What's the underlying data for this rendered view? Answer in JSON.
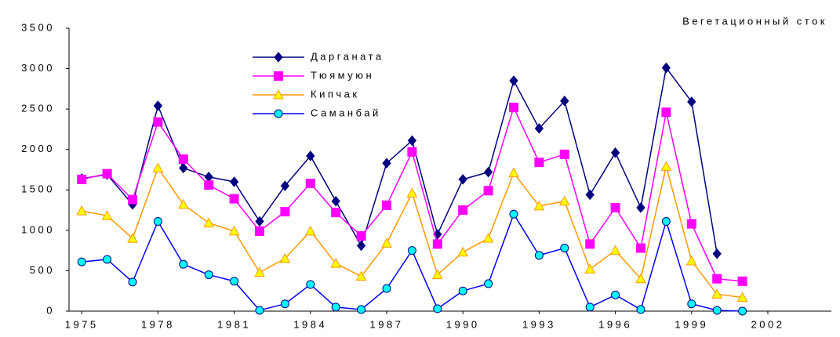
{
  "chart_data": {
    "type": "line",
    "title": "Вегетационный сток",
    "x": [
      1975,
      1976,
      1977,
      1978,
      1979,
      1980,
      1981,
      1982,
      1983,
      1984,
      1985,
      1986,
      1987,
      1988,
      1989,
      1990,
      1991,
      1992,
      1993,
      1994,
      1995,
      1996,
      1997,
      1998,
      1999,
      2000,
      2001
    ],
    "series": [
      {
        "name": "Дарганата",
        "color": "#000080",
        "marker": "diamond",
        "marker_fill": "#000080",
        "values": [
          1640,
          1690,
          1320,
          2540,
          1770,
          1660,
          1600,
          1110,
          1550,
          1920,
          1360,
          810,
          1830,
          2110,
          950,
          1630,
          1720,
          2850,
          2260,
          2600,
          1440,
          1960,
          1280,
          3010,
          2590,
          710,
          null
        ]
      },
      {
        "name": "Тюямуюн",
        "color": "#ff00ff",
        "marker": "square",
        "marker_fill": "#ff00ff",
        "values": [
          1630,
          1700,
          1380,
          2340,
          1880,
          1560,
          1390,
          990,
          1230,
          1580,
          1220,
          930,
          1310,
          1970,
          830,
          1250,
          1490,
          2520,
          1840,
          1940,
          830,
          1280,
          780,
          2460,
          1080,
          400,
          370
        ]
      },
      {
        "name": "Кипчак",
        "color": "#ff9900",
        "marker": "triangle",
        "marker_fill": "#ffff00",
        "values": [
          1240,
          1180,
          900,
          1770,
          1320,
          1090,
          990,
          480,
          650,
          990,
          590,
          430,
          840,
          1460,
          450,
          730,
          900,
          1710,
          1300,
          1360,
          520,
          750,
          400,
          1790,
          620,
          210,
          170
        ]
      },
      {
        "name": "Саманбай",
        "color": "#0000ff",
        "marker": "circle",
        "marker_fill": "#00ffff",
        "values": [
          610,
          640,
          360,
          1110,
          580,
          450,
          370,
          10,
          90,
          330,
          50,
          20,
          280,
          750,
          30,
          250,
          340,
          1200,
          690,
          780,
          50,
          200,
          20,
          1110,
          90,
          10,
          0
        ]
      }
    ],
    "xlim": [
      1974.5,
      2004.5
    ],
    "xticks": [
      1975,
      1978,
      1981,
      1984,
      1987,
      1990,
      1993,
      1996,
      1999,
      2002
    ],
    "ylim": [
      0,
      3500
    ],
    "yticks": [
      0,
      500,
      1000,
      1500,
      2000,
      2500,
      3000,
      3500
    ],
    "grid": false
  }
}
